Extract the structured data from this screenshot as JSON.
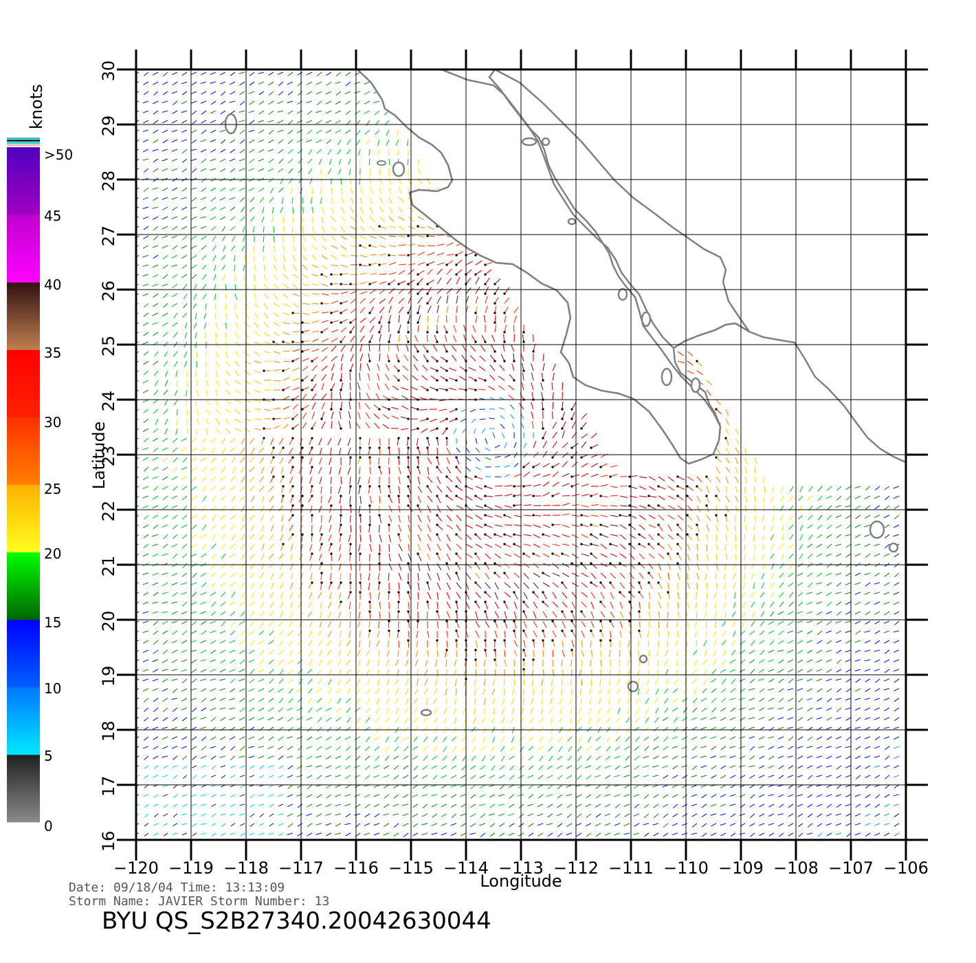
{
  "map": {
    "x_axis_label": "Longitude",
    "y_axis_label": "Latitude",
    "lon_ticks": [
      "−120",
      "−119",
      "−118",
      "−117",
      "−116",
      "−115",
      "−114",
      "−113",
      "−112",
      "−111",
      "−110",
      "−109",
      "−108",
      "−107",
      "−106"
    ],
    "lat_ticks": [
      "30",
      "29",
      "28",
      "27",
      "26",
      "25",
      "24",
      "23",
      "22",
      "21",
      "20",
      "19",
      "18",
      "17",
      "16"
    ],
    "lon_range": [
      -120,
      -106
    ],
    "lat_range": [
      16,
      30
    ],
    "storm_center": {
      "lon": -113.5,
      "lat": 23.3
    },
    "coast_color": "#808080",
    "grid_color": "#000000"
  },
  "colorbar": {
    "unit_label": "knots",
    "labels": [
      ">50",
      "45",
      "40",
      "35",
      "30",
      "25",
      "20",
      "15",
      "10",
      "5",
      "0"
    ],
    "bins": [
      {
        "from": 0,
        "to": 5,
        "colors": [
          "#8a8a8a",
          "#202020"
        ]
      },
      {
        "from": 5,
        "to": 10,
        "colors": [
          "#00e8ff",
          "#0078ff"
        ]
      },
      {
        "from": 10,
        "to": 15,
        "colors": [
          "#0060ff",
          "#0000ff"
        ]
      },
      {
        "from": 15,
        "to": 20,
        "colors": [
          "#006400",
          "#00ff00"
        ]
      },
      {
        "from": 20,
        "to": 25,
        "colors": [
          "#ffff20",
          "#ffb000"
        ]
      },
      {
        "from": 25,
        "to": 30,
        "colors": [
          "#ff8000",
          "#ff3000"
        ]
      },
      {
        "from": 30,
        "to": 35,
        "colors": [
          "#ff2000",
          "#ff0000"
        ]
      },
      {
        "from": 35,
        "to": 40,
        "colors": [
          "#c08050",
          "#301010"
        ]
      },
      {
        "from": 40,
        "to": 45,
        "colors": [
          "#ff00ff",
          "#c000d0"
        ]
      },
      {
        "from": 45,
        "to": 50,
        "colors": [
          "#a000c0",
          "#5000c0"
        ]
      }
    ]
  },
  "footer": {
    "date_line": "Date: 09/18/04   Time: 13:13:09",
    "storm_line": "Storm Name: JAVIER   Storm Number: 13",
    "title": "BYU  QS_S2B27340.20042630044"
  }
}
